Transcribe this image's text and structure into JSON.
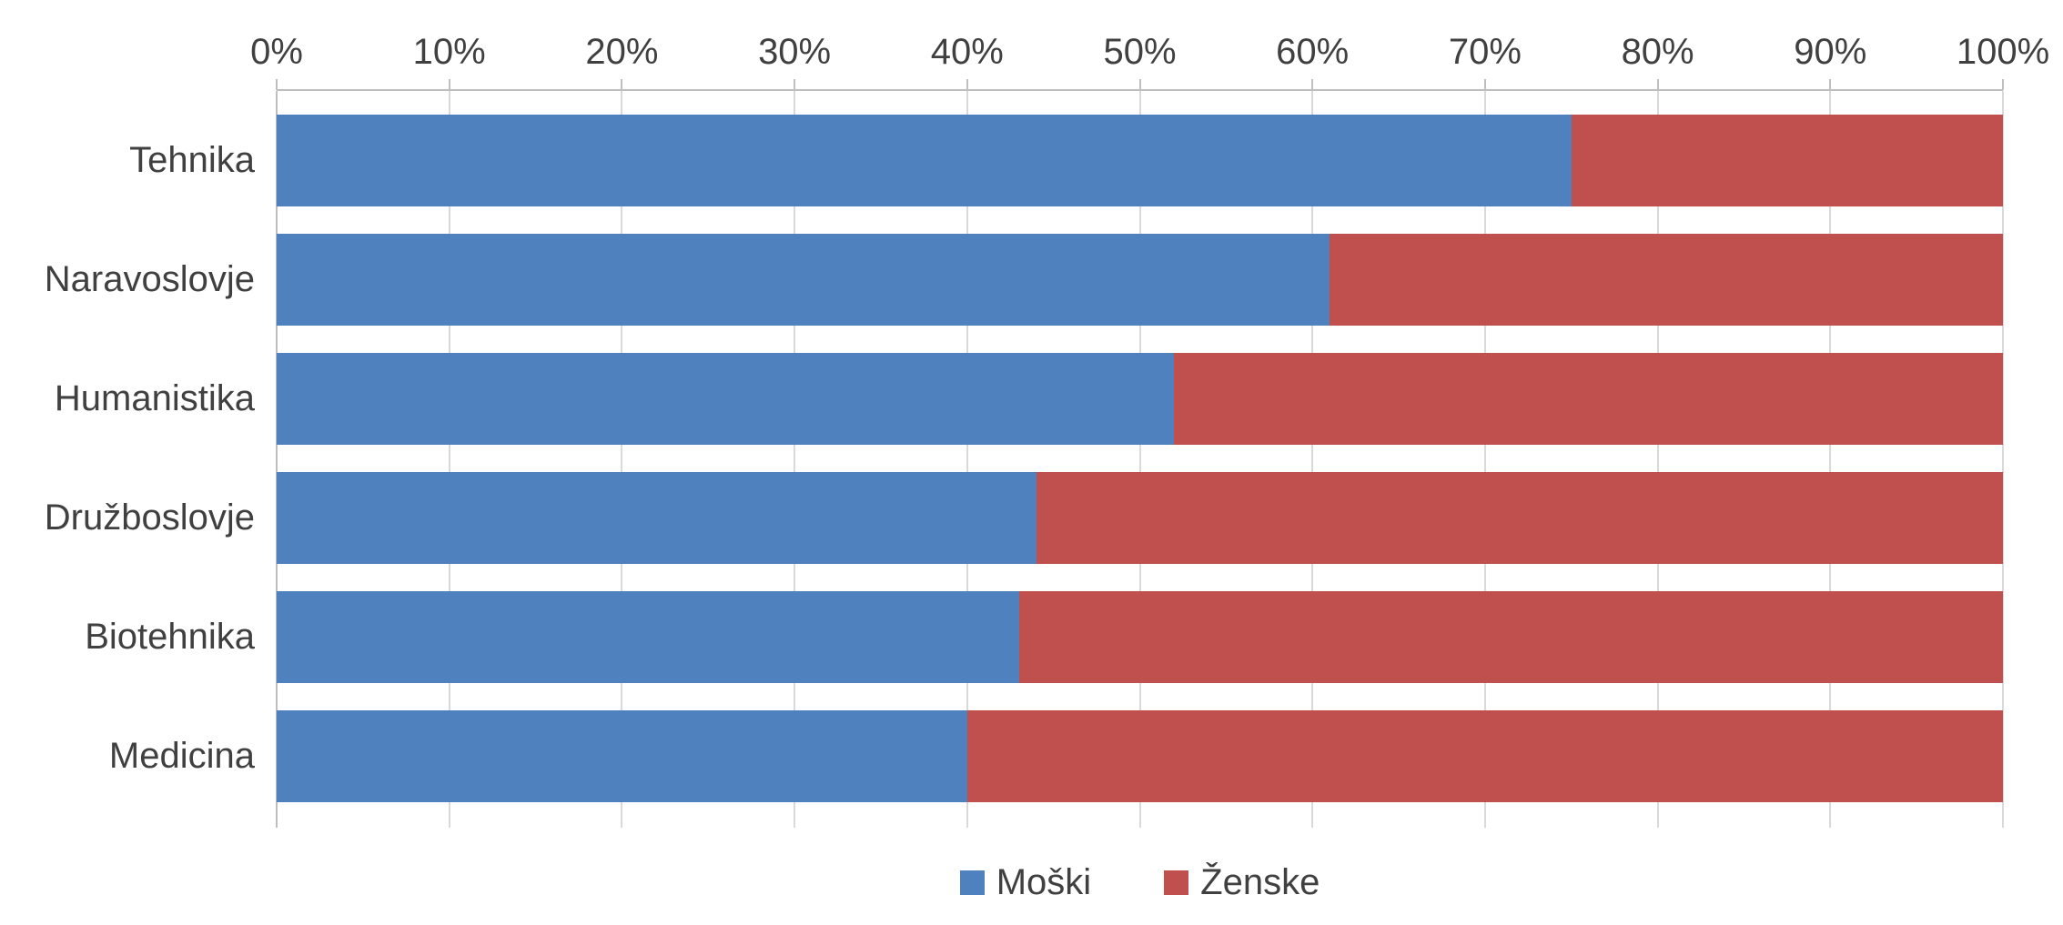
{
  "chart_data": {
    "type": "bar",
    "orientation": "horizontal",
    "stacked": true,
    "stacked_mode": "percent",
    "title": "",
    "xlabel": "",
    "ylabel": "",
    "categories": [
      "Tehnika",
      "Naravoslovje",
      "Humanistika",
      "Družboslovje",
      "Biotehnika",
      "Medicina"
    ],
    "series": [
      {
        "name": "Moški",
        "key": "moski",
        "color": "#4E81BD",
        "values": [
          75,
          61,
          52,
          44,
          43,
          40
        ]
      },
      {
        "name": "Ženske",
        "key": "zenske",
        "color": "#C0504D",
        "values": [
          25,
          39,
          48,
          56,
          57,
          60
        ]
      }
    ],
    "x_axis": {
      "position": "top",
      "min": 0,
      "max": 100,
      "tick_step": 10,
      "ticks": [
        "0%",
        "10%",
        "20%",
        "30%",
        "40%",
        "50%",
        "60%",
        "70%",
        "80%",
        "90%",
        "100%"
      ]
    },
    "grid": true,
    "legend_position": "bottom"
  },
  "colors": {
    "background": "#FFFFFF",
    "gridline": "#D9D9D9",
    "axis_line": "#BFBFBF",
    "text": "#404040"
  }
}
